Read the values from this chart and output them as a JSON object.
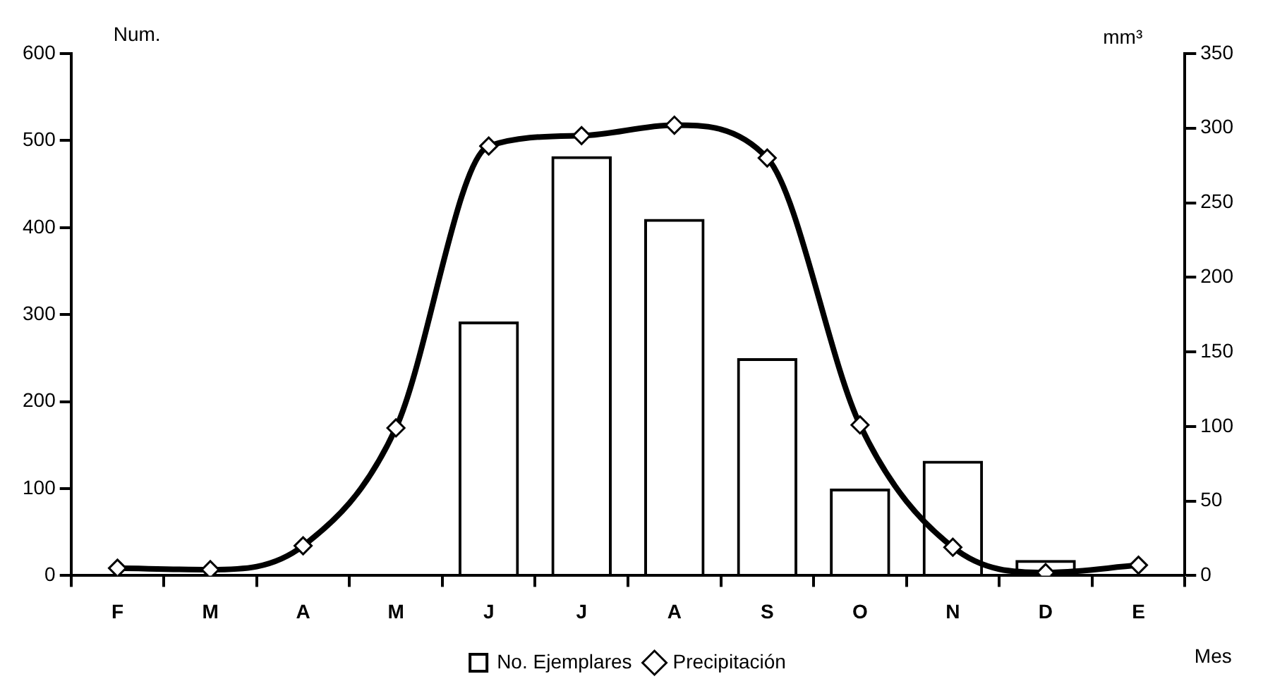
{
  "chart_data": {
    "type": "bar",
    "categories": [
      "F",
      "M",
      "A",
      "M",
      "J",
      "J",
      "A",
      "S",
      "O",
      "N",
      "D",
      "E"
    ],
    "series": [
      {
        "name": "No. Ejemplares",
        "color": "#000000",
        "values": [
          2,
          2,
          0,
          0,
          292,
          482,
          410,
          250,
          100,
          132,
          18,
          0
        ]
      },
      {
        "name": "Precipitación",
        "type": "line",
        "axis": "y2",
        "color": "#000000",
        "marker": "diamond",
        "values": [
          5,
          4,
          20,
          99,
          288,
          295,
          302,
          280,
          101,
          19,
          2,
          7
        ]
      }
    ],
    "xlabel": "Mes",
    "ylabel": "Num.",
    "y2label": "mm³",
    "ylim": [
      0,
      600
    ],
    "yticks": [
      0,
      100,
      200,
      300,
      400,
      500,
      600
    ],
    "y2lim": [
      0,
      350
    ],
    "y2ticks": [
      0,
      50,
      100,
      150,
      200,
      250,
      300,
      350
    ],
    "grid": false,
    "legend": "bottom"
  }
}
